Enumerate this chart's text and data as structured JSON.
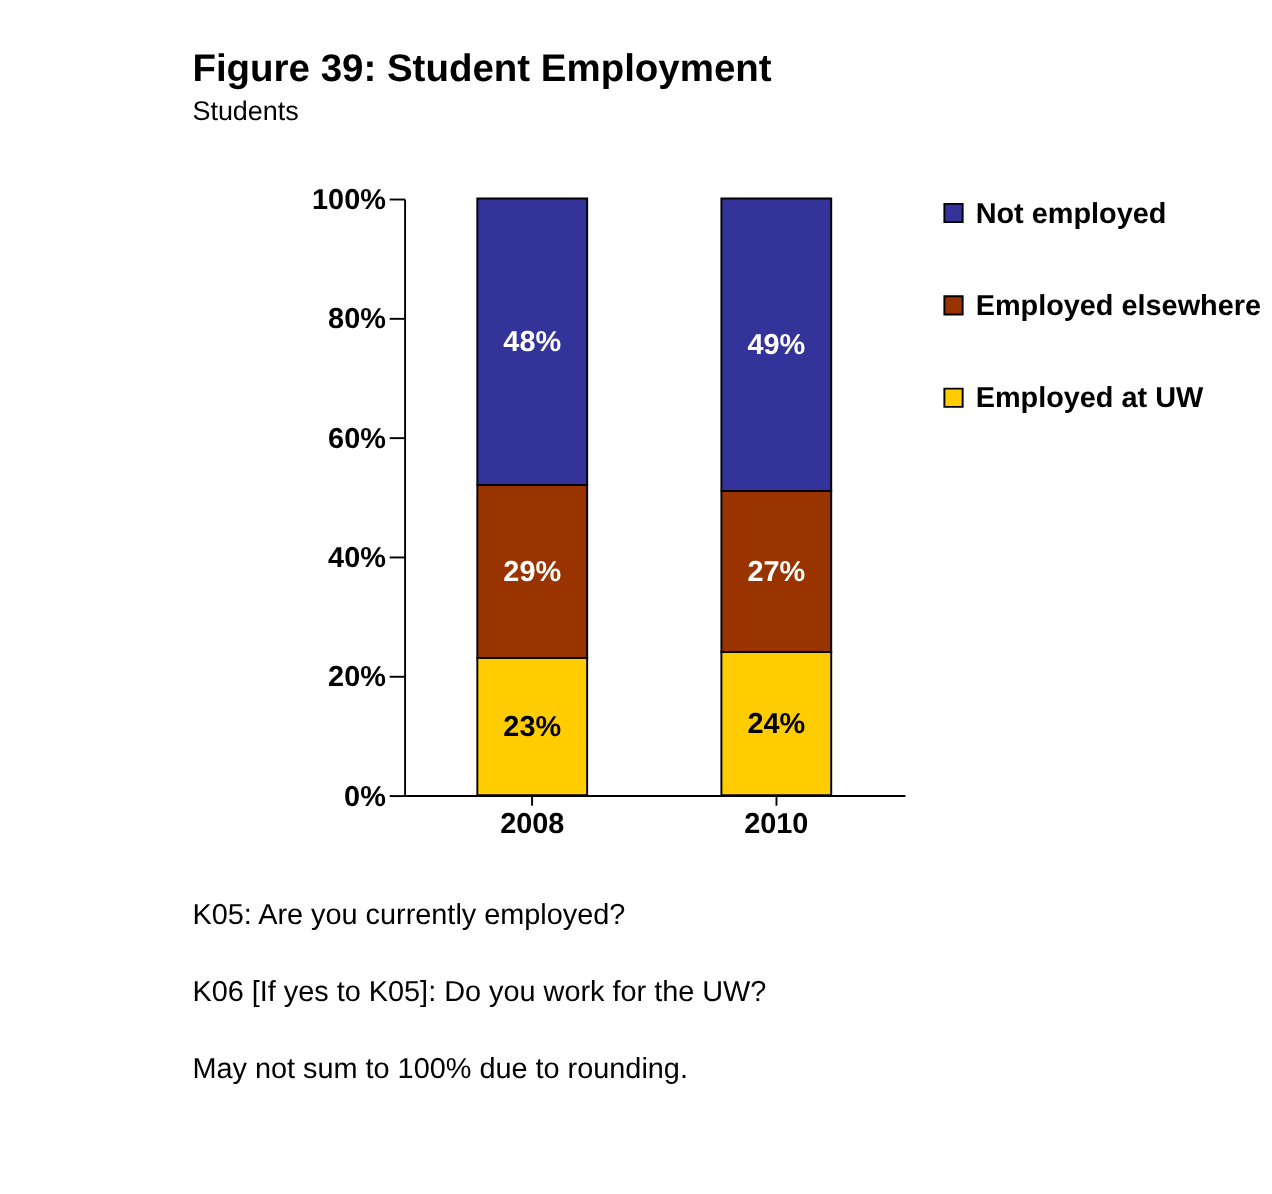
{
  "chart_data": {
    "type": "bar",
    "title": "Figure 39: Student Employment",
    "subtitle": "Students",
    "categories": [
      "2008",
      "2010"
    ],
    "stacked": true,
    "series": [
      {
        "name": "Employed at UW",
        "color": "#ffcc00",
        "values": [
          23,
          24
        ],
        "value_labels": [
          "23%",
          "24%"
        ]
      },
      {
        "name": "Employed elsewhere",
        "color": "#993300",
        "values": [
          29,
          27
        ],
        "value_labels": [
          "29%",
          "27%"
        ]
      },
      {
        "name": "Not employed",
        "color": "#333399",
        "values": [
          48,
          49
        ],
        "value_labels": [
          "48%",
          "49%"
        ]
      }
    ],
    "ylim": [
      0,
      100
    ],
    "yticks": [
      {
        "value": 0,
        "label": "0%"
      },
      {
        "value": 20,
        "label": "20%"
      },
      {
        "value": 40,
        "label": "40%"
      },
      {
        "value": 60,
        "label": "60%"
      },
      {
        "value": 80,
        "label": "80%"
      },
      {
        "value": 100,
        "label": "100%"
      }
    ],
    "legend": "right",
    "grid": false,
    "annotations": [
      "K05: Are you currently employed?",
      "K06 [If yes to K05]: Do you work for the UW?",
      "May not sum to 100% due to rounding."
    ]
  }
}
